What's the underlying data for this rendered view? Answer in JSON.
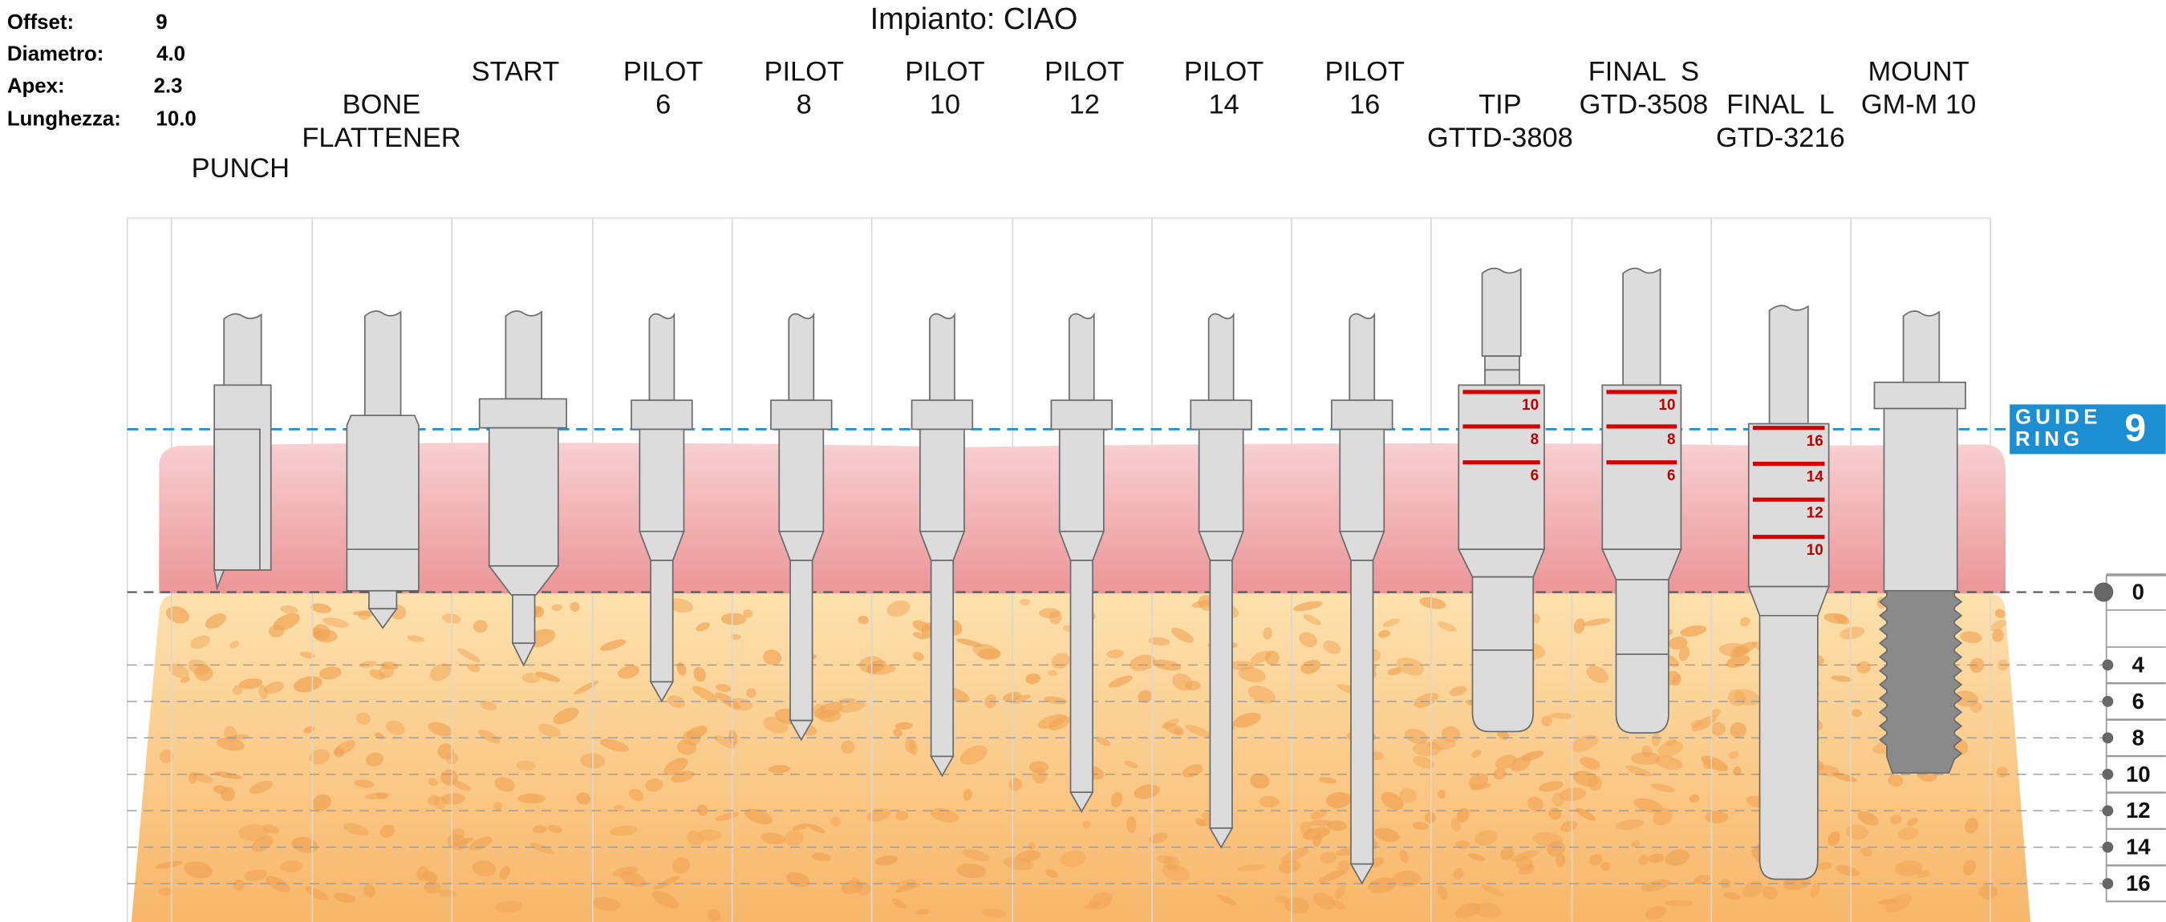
{
  "title": "Impianto: CIAO",
  "info": [
    {
      "label": "Offset:",
      "value": "9"
    },
    {
      "label": "Diametro:",
      "value": "4.0"
    },
    {
      "label": "Apex:",
      "value": "2.3"
    },
    {
      "label": "Lunghezza:",
      "value": "10.0"
    }
  ],
  "columns": [
    {
      "label": [
        "PUNCH"
      ]
    },
    {
      "label": [
        "BONE",
        "FLATTENER"
      ]
    },
    {
      "label": [
        "START"
      ]
    },
    {
      "label": [
        "PILOT",
        "6"
      ]
    },
    {
      "label": [
        "PILOT",
        "8"
      ]
    },
    {
      "label": [
        "PILOT",
        "10"
      ]
    },
    {
      "label": [
        "PILOT",
        "12"
      ]
    },
    {
      "label": [
        "PILOT",
        "14"
      ]
    },
    {
      "label": [
        "PILOT",
        "16"
      ]
    },
    {
      "label": [
        "TIP",
        "GTTD-3808"
      ],
      "marks": [
        "10",
        "8",
        "6"
      ]
    },
    {
      "label": [
        "FINAL  S",
        "GTD-3508"
      ],
      "marks": [
        "10",
        "8",
        "6"
      ]
    },
    {
      "label": [
        "FINAL  L",
        "GTD-3216"
      ],
      "marks": [
        "16",
        "14",
        "12",
        "10"
      ]
    },
    {
      "label": [
        "MOUNT",
        "GM-M 10"
      ]
    }
  ],
  "guide_ring": {
    "label": [
      "GUIDE",
      "RING"
    ],
    "value": "9"
  },
  "depth_scale": [
    0,
    4,
    6,
    8,
    10,
    12,
    14,
    16
  ]
}
